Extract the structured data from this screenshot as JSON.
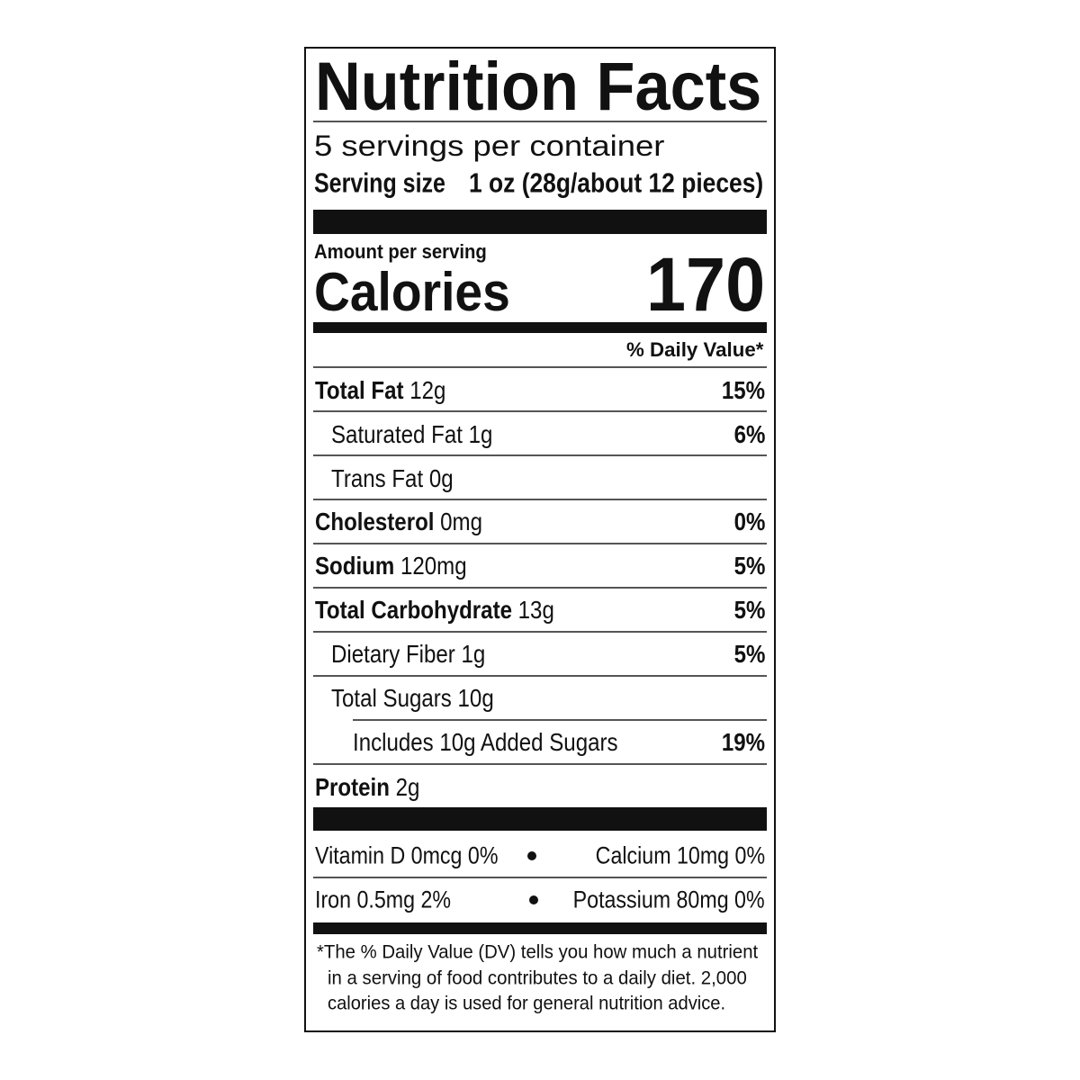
{
  "title": "Nutrition Facts",
  "servings": "5 servings per container",
  "serving_size": {
    "label": "Serving size",
    "value": "1 oz (28g/about 12 pieces)"
  },
  "amount_per_serving": "Amount per serving",
  "calories": {
    "label": "Calories",
    "value": "170"
  },
  "daily_value_header": "% Daily Value*",
  "nutrients": [
    {
      "name": "Total Fat",
      "amount": "12g",
      "dv": "15%"
    },
    {
      "name": "Saturated Fat",
      "amount": "1g",
      "dv": "6%"
    },
    {
      "name": "Trans Fat",
      "amount": "0g"
    },
    {
      "name": "Cholesterol",
      "amount": "0mg",
      "dv": "0%"
    },
    {
      "name": "Sodium",
      "amount": "120mg",
      "dv": "5%"
    },
    {
      "name": "Total Carbohydrate",
      "amount": "13g",
      "dv": "5%"
    },
    {
      "name": "Dietary Fiber",
      "amount": "1g",
      "dv": "5%"
    },
    {
      "name": "Total Sugars",
      "amount": "10g"
    },
    {
      "name": "Includes 10g Added Sugars",
      "dv": "19%"
    },
    {
      "name": "Protein",
      "amount": "2g"
    }
  ],
  "vitamins": [
    [
      "Vitamin D 0mcg 0%",
      "Calcium 10mg 0%"
    ],
    [
      "Iron 0.5mg 2%",
      "Potassium 80mg 0%"
    ]
  ],
  "footnote": [
    "*The % Daily Value (DV) tells you how much a nutrient",
    "in a serving of food contributes to a daily diet. 2,000",
    "calories a day is used for general nutrition advice."
  ]
}
